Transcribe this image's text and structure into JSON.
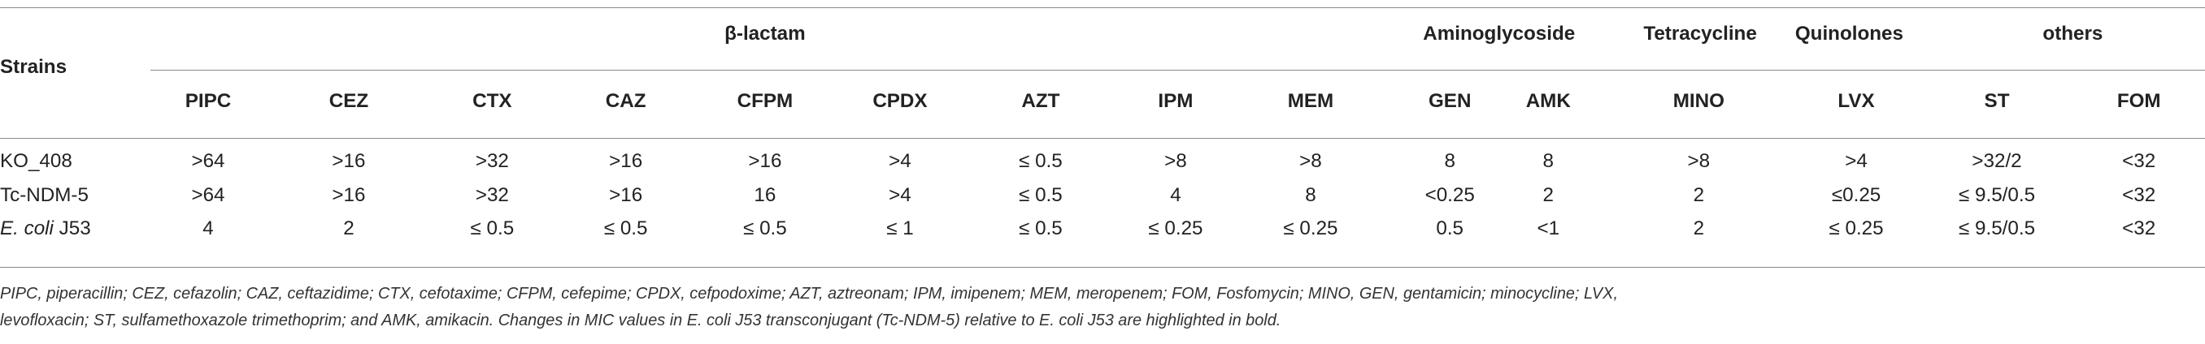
{
  "table": {
    "strains_header": "Strains",
    "groups": [
      {
        "label": "β-lactam"
      },
      {
        "label": "Aminoglycoside"
      },
      {
        "label": "Tetracycline"
      },
      {
        "label": "Quinolones"
      },
      {
        "label": "others"
      }
    ],
    "columns": [
      "PIPC",
      "CEZ",
      "CTX",
      "CAZ",
      "CFPM",
      "CPDX",
      "AZT",
      "IPM",
      "MEM",
      "GEN",
      "AMK",
      "MINO",
      "LVX",
      "ST",
      "FOM"
    ],
    "rows": [
      {
        "strain_prefix": "",
        "strain_suffix": "KO_408",
        "values": [
          ">64",
          ">16",
          ">32",
          ">16",
          ">16",
          ">4",
          "≤ 0.5",
          ">8",
          ">8",
          "8",
          "8",
          ">8",
          ">4",
          ">32/2",
          "<32"
        ]
      },
      {
        "strain_prefix": "",
        "strain_suffix": "Tc-NDM-5",
        "values": [
          ">64",
          ">16",
          ">32",
          ">16",
          "16",
          ">4",
          "≤ 0.5",
          "4",
          "8",
          "<0.25",
          "2",
          "2",
          "≤0.25",
          "≤ 9.5/0.5",
          "<32"
        ]
      },
      {
        "strain_prefix": "E. coli",
        "strain_suffix": " J53",
        "values": [
          "4",
          "2",
          "≤ 0.5",
          "≤ 0.5",
          "≤ 0.5",
          "≤ 1",
          "≤ 0.5",
          "≤ 0.25",
          "≤ 0.25",
          "0.5",
          "<1",
          "2",
          "≤ 0.25",
          "≤ 9.5/0.5",
          "<32"
        ]
      }
    ]
  },
  "footnote": {
    "line1": "PIPC, piperacillin; CEZ, cefazolin; CAZ, ceftazidime; CTX, cefotaxime; CFPM, cefepime; CPDX, cefpodoxime; AZT, aztreonam; IPM, imipenem; MEM, meropenem; FOM, Fosfomycin; MINO, GEN, gentamicin; minocycline; LVX,",
    "line2": "levofloxacin; ST, sulfamethoxazole trimethoprim; and AMK, amikacin. Changes in MIC values in E. coli J53 transconjugant (Tc-NDM-5) relative to E. coli J53 are highlighted in bold."
  }
}
